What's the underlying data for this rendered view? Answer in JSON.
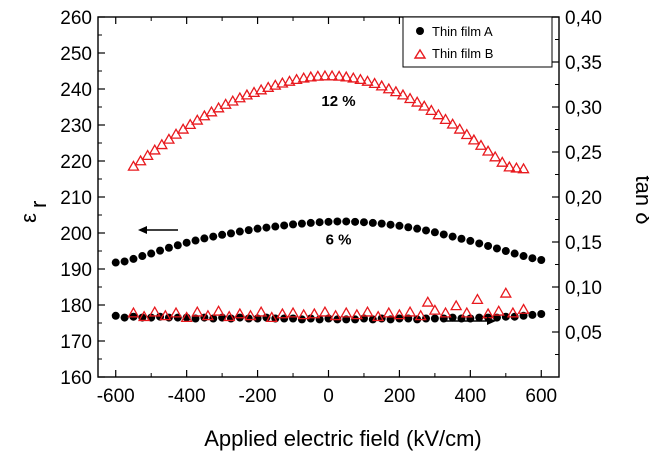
{
  "chart_data": {
    "type": "scatter",
    "xlabel": "Applied electric field (kV/cm)",
    "ylabel_left_main": "ε",
    "ylabel_left_sub": "r",
    "ylabel_right": "tan δ",
    "xlim": [
      -650,
      650
    ],
    "ylim_left": [
      160,
      260
    ],
    "ylim_right": [
      0.0,
      0.4
    ],
    "x_ticks": [
      "-600",
      "-400",
      "-200",
      "0",
      "200",
      "400",
      "600"
    ],
    "y_left_ticks": [
      "160",
      "170",
      "180",
      "190",
      "200",
      "210",
      "220",
      "230",
      "240",
      "250",
      "260"
    ],
    "y_right_ticks": [
      "0,05",
      "0,10",
      "0,15",
      "0,20",
      "0,25",
      "0,30",
      "0,35",
      "0,40"
    ],
    "grid": false,
    "legend_position": "top-right",
    "annotations": [
      {
        "text": "12 %",
        "x": 0,
        "y": 237
      },
      {
        "text": "6 %",
        "x": 0,
        "y": 198.5
      }
    ],
    "series": [
      {
        "name": "Thin film A",
        "axis": "left",
        "marker": "filled-circle",
        "color": "#000000",
        "x": [
          -600,
          -575,
          -550,
          -525,
          -500,
          -475,
          -450,
          -425,
          -400,
          -375,
          -350,
          -325,
          -300,
          -275,
          -250,
          -225,
          -200,
          -175,
          -150,
          -125,
          -100,
          -75,
          -50,
          -25,
          0,
          25,
          50,
          75,
          100,
          125,
          150,
          175,
          200,
          225,
          250,
          275,
          300,
          325,
          350,
          375,
          400,
          425,
          450,
          475,
          500,
          525,
          550,
          575,
          600
        ],
        "y": [
          191.8,
          192.1,
          192.8,
          193.6,
          194.3,
          195.1,
          195.9,
          196.6,
          197.3,
          197.9,
          198.5,
          199.0,
          199.5,
          199.9,
          200.4,
          200.8,
          201.2,
          201.5,
          201.8,
          202.1,
          202.4,
          202.6,
          202.8,
          203.0,
          203.1,
          203.2,
          203.2,
          203.1,
          203.0,
          202.8,
          202.6,
          202.3,
          202.0,
          201.6,
          201.2,
          200.7,
          200.2,
          199.6,
          199.0,
          198.4,
          197.8,
          197.1,
          196.4,
          195.7,
          195.0,
          194.3,
          193.6,
          193.0,
          192.5
        ]
      },
      {
        "name": "Thin film B",
        "axis": "left",
        "marker": "open-triangle",
        "color": "#e8191e",
        "x": [
          -550,
          -530,
          -510,
          -490,
          -470,
          -450,
          -430,
          -410,
          -390,
          -370,
          -350,
          -330,
          -310,
          -290,
          -270,
          -250,
          -230,
          -210,
          -190,
          -170,
          -150,
          -130,
          -110,
          -90,
          -70,
          -50,
          -30,
          -10,
          10,
          30,
          50,
          70,
          90,
          110,
          130,
          150,
          170,
          190,
          210,
          230,
          250,
          270,
          290,
          310,
          330,
          350,
          370,
          390,
          410,
          430,
          450,
          470,
          490,
          510,
          530,
          550
        ],
        "y": [
          218.5,
          220.0,
          221.5,
          223.0,
          224.5,
          226.0,
          227.4,
          228.8,
          230.1,
          231.3,
          232.5,
          233.6,
          234.7,
          235.7,
          236.6,
          237.5,
          238.3,
          239.0,
          239.7,
          240.4,
          241.0,
          241.6,
          242.1,
          242.6,
          243.0,
          243.3,
          243.5,
          243.6,
          243.6,
          243.5,
          243.3,
          243.0,
          242.6,
          242.1,
          241.5,
          240.8,
          240.0,
          239.2,
          238.3,
          237.3,
          236.3,
          235.2,
          234.0,
          232.8,
          231.5,
          230.2,
          228.8,
          227.3,
          225.8,
          224.3,
          222.7,
          221.1,
          219.6,
          218.3,
          218.0,
          217.8
        ]
      },
      {
        "name": "Thin film A",
        "axis": "right",
        "marker": "filled-circle",
        "color": "#000000",
        "x": [
          -600,
          -575,
          -550,
          -525,
          -500,
          -475,
          -450,
          -425,
          -400,
          -375,
          -350,
          -325,
          -300,
          -275,
          -250,
          -225,
          -200,
          -175,
          -150,
          -125,
          -100,
          -75,
          -50,
          -25,
          0,
          25,
          50,
          75,
          100,
          125,
          150,
          175,
          200,
          225,
          250,
          275,
          300,
          325,
          350,
          375,
          400,
          425,
          450,
          475,
          500,
          525,
          550,
          575,
          600
        ],
        "y": [
          0.068,
          0.066,
          0.067,
          0.066,
          0.066,
          0.067,
          0.066,
          0.066,
          0.066,
          0.065,
          0.066,
          0.065,
          0.066,
          0.065,
          0.066,
          0.065,
          0.065,
          0.066,
          0.065,
          0.065,
          0.065,
          0.064,
          0.065,
          0.064,
          0.065,
          0.064,
          0.064,
          0.064,
          0.065,
          0.064,
          0.065,
          0.064,
          0.065,
          0.065,
          0.064,
          0.065,
          0.065,
          0.065,
          0.066,
          0.065,
          0.065,
          0.066,
          0.066,
          0.066,
          0.067,
          0.067,
          0.068,
          0.069,
          0.07
        ]
      },
      {
        "name": "Thin film B",
        "axis": "right",
        "marker": "open-triangle",
        "color": "#e8191e",
        "x": [
          -550,
          -520,
          -490,
          -460,
          -430,
          -400,
          -370,
          -340,
          -310,
          -280,
          -250,
          -220,
          -190,
          -160,
          -130,
          -100,
          -70,
          -40,
          -10,
          20,
          50,
          80,
          110,
          140,
          170,
          200,
          230,
          260,
          280,
          300,
          330,
          360,
          390,
          420,
          450,
          480,
          500,
          520,
          550
        ],
        "y": [
          0.071,
          0.067,
          0.072,
          0.068,
          0.071,
          0.066,
          0.072,
          0.068,
          0.073,
          0.067,
          0.07,
          0.068,
          0.072,
          0.066,
          0.07,
          0.071,
          0.069,
          0.07,
          0.072,
          0.068,
          0.071,
          0.069,
          0.072,
          0.067,
          0.071,
          0.069,
          0.072,
          0.068,
          0.083,
          0.074,
          0.071,
          0.079,
          0.071,
          0.086,
          0.07,
          0.073,
          0.093,
          0.071,
          0.075
        ]
      }
    ]
  }
}
